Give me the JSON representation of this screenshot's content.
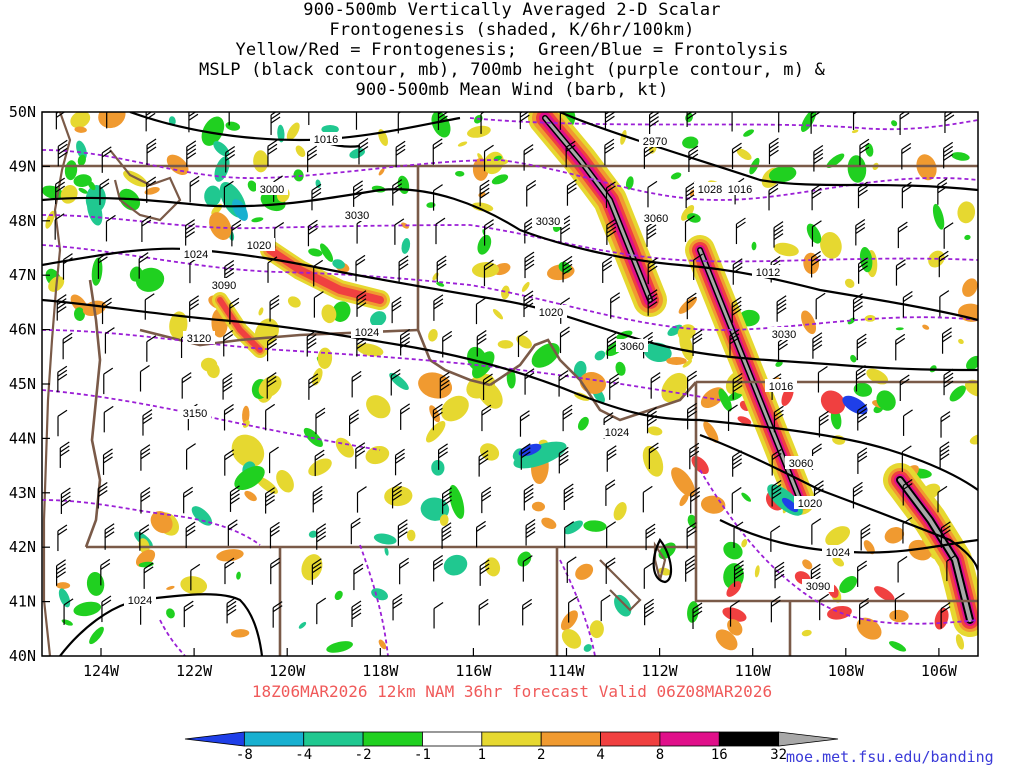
{
  "title_lines": [
    "900-500mb Vertically Averaged 2-D Scalar",
    "Frontogenesis (shaded, K/6hr/100km)",
    "Yellow/Red = Frontogenesis;  Green/Blue = Frontolysis",
    "MSLP (black contour, mb), 700mb height (purple contour, m) &",
    "900-500mb Mean Wind (barb, kt)"
  ],
  "map": {
    "lat_labels": [
      "50N",
      "49N",
      "48N",
      "47N",
      "46N",
      "45N",
      "44N",
      "43N",
      "42N",
      "41N",
      "40N"
    ],
    "lon_labels": [
      "124W",
      "122W",
      "120W",
      "118W",
      "116W",
      "114W",
      "112W",
      "110W",
      "108W",
      "106W"
    ],
    "mslp_labels": [
      "1016",
      "1016",
      "1012",
      "1016",
      "1020",
      "1020",
      "1024",
      "1024",
      "1024",
      "1020",
      "1024",
      "1028",
      "1024"
    ],
    "height_labels": [
      "2970",
      "3000",
      "3030",
      "3060",
      "3060",
      "3030",
      "3090",
      "3120",
      "3150",
      "3060",
      "3090",
      "3030"
    ]
  },
  "valid_time": "18Z06MAR2026 12km NAM 36hr forecast Valid 06Z08MAR2026",
  "colorbar": {
    "labels": [
      "-8",
      "-4",
      "-2",
      "-1",
      "1",
      "2",
      "4",
      "8",
      "16",
      "32"
    ],
    "colors": [
      "#1f3fe8",
      "#18b0d0",
      "#20c890",
      "#20d020",
      "#ffffff",
      "#e6d830",
      "#f09a30",
      "#f04040",
      "#e0108a",
      "#000000",
      "#a8a8a8"
    ]
  },
  "credit": "moe.met.fsu.edu/banding"
}
